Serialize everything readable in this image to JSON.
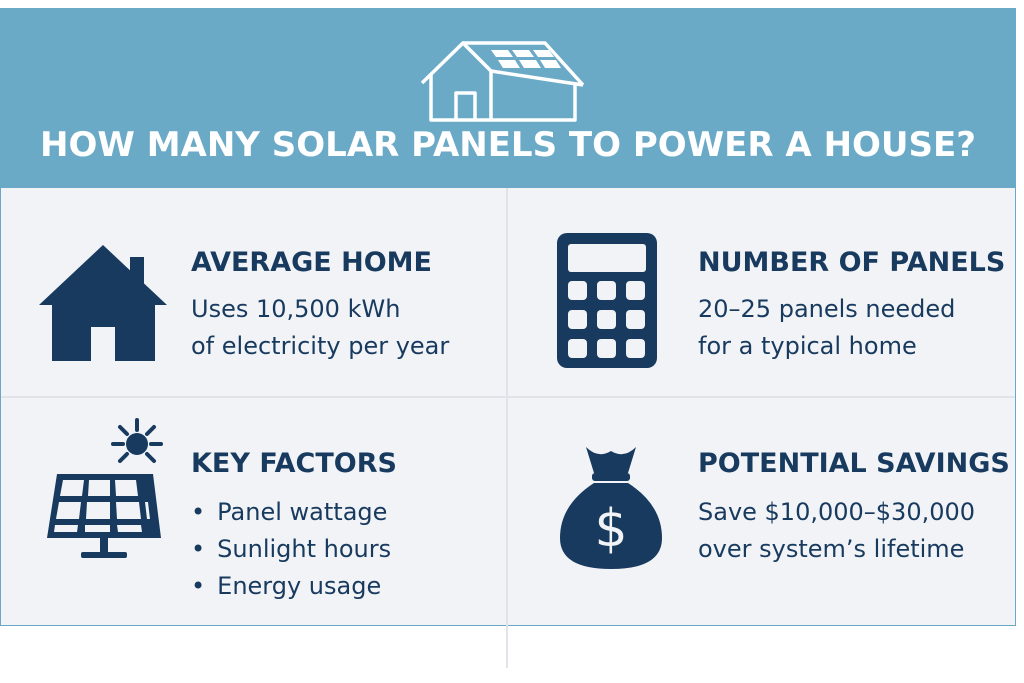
{
  "header": {
    "title": "HOW MANY SOLAR PANELS TO POWER A HOUSE?",
    "icon": "house-with-solar-panels-icon"
  },
  "panels": [
    {
      "title": "AVERAGE HOME",
      "icon": "house-icon",
      "lines": [
        "Uses 10,500 kWh",
        "of electricity per year"
      ]
    },
    {
      "title": "NUMBER OF PANELS",
      "icon": "calculator-icon",
      "lines": [
        "20–25 panels needed",
        "for a typical home"
      ]
    },
    {
      "title": "KEY FACTORS",
      "icon": "solar-panel-sun-icon",
      "bullets": [
        "Panel wattage",
        "Sunlight hours",
        "Energy usage"
      ]
    },
    {
      "title": "POTENTIAL SAVINGS",
      "icon": "money-bag-icon",
      "lines": [
        "Save $10,000–$30,000",
        "over system’s lifetime"
      ]
    }
  ],
  "colors": {
    "header_bg": "#6aaac7",
    "panel_bg": "#f1f3f6",
    "navy": "#173a5e",
    "white": "#ffffff"
  }
}
